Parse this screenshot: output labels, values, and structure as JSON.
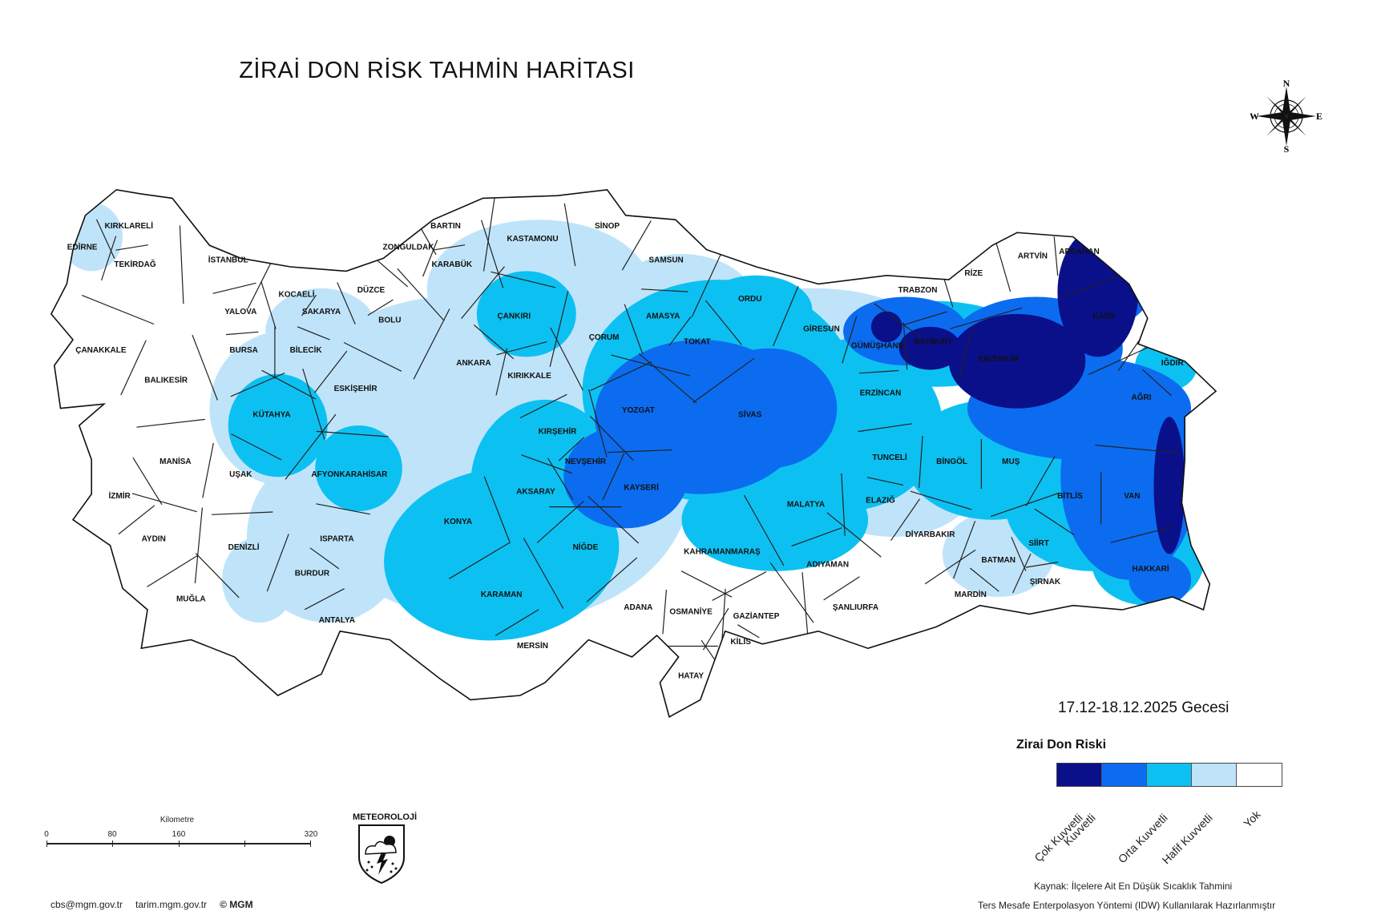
{
  "title": "ZİRAİ DON RİSK TAHMİN HARİTASI",
  "date_label": "17.12-18.12.2025 Gecesi",
  "compass": {
    "n": "N",
    "s": "S",
    "e": "E",
    "w": "W"
  },
  "legend": {
    "title": "Zirai Don Riski",
    "items": [
      {
        "label": "Çok Kuvvetli",
        "color": "#0a0f8a"
      },
      {
        "label": "Kuvvetli",
        "color": "#0b6cf0"
      },
      {
        "label": "Orta Kuvvetli",
        "color": "#0cc1f2"
      },
      {
        "label": "Hafif Kuvvetli",
        "color": "#bfe4fa"
      },
      {
        "label": "Yok",
        "color": "#ffffff"
      }
    ]
  },
  "source_lines": [
    "Kaynak: İlçelere Ait En Düşük Sıcaklık Tahmini",
    "Ters Mesafe Enterpolasyon Yöntemi (IDW) Kullanılarak Hazırlanmıştır"
  ],
  "footer": {
    "email": "cbs@mgm.gov.tr",
    "site": "tarim.mgm.gov.tr",
    "copyright": "© MGM"
  },
  "scale": {
    "title": "Kilometre",
    "ticks": [
      "0",
      "80",
      "160",
      "320"
    ]
  },
  "logo_text": "METEOROLOJİ",
  "map": {
    "provinces": [
      {
        "name": "KIRKLARELİ",
        "lon": 27.3,
        "lat": 41.6
      },
      {
        "name": "EDİRNE",
        "lon": 26.55,
        "lat": 41.35
      },
      {
        "name": "TEKİRDAĞ",
        "lon": 27.4,
        "lat": 41.15
      },
      {
        "name": "İSTANBUL",
        "lon": 28.9,
        "lat": 41.2
      },
      {
        "name": "KOCAELİ",
        "lon": 30.0,
        "lat": 40.8
      },
      {
        "name": "YALOVA",
        "lon": 29.1,
        "lat": 40.6
      },
      {
        "name": "SAKARYA",
        "lon": 30.4,
        "lat": 40.6
      },
      {
        "name": "DÜZCE",
        "lon": 31.2,
        "lat": 40.85
      },
      {
        "name": "ZONGULDAK",
        "lon": 31.8,
        "lat": 41.35
      },
      {
        "name": "BARTIN",
        "lon": 32.4,
        "lat": 41.6
      },
      {
        "name": "KARABÜK",
        "lon": 32.5,
        "lat": 41.15
      },
      {
        "name": "KASTAMONU",
        "lon": 33.8,
        "lat": 41.45
      },
      {
        "name": "SİNOP",
        "lon": 35.0,
        "lat": 41.6
      },
      {
        "name": "SAMSUN",
        "lon": 35.95,
        "lat": 41.2
      },
      {
        "name": "BOLU",
        "lon": 31.5,
        "lat": 40.5
      },
      {
        "name": "ÇANKIRI",
        "lon": 33.5,
        "lat": 40.55
      },
      {
        "name": "ÇORUM",
        "lon": 34.95,
        "lat": 40.3
      },
      {
        "name": "AMASYA",
        "lon": 35.9,
        "lat": 40.55
      },
      {
        "name": "ORDU",
        "lon": 37.3,
        "lat": 40.75
      },
      {
        "name": "GİRESUN",
        "lon": 38.45,
        "lat": 40.4
      },
      {
        "name": "TRABZON",
        "lon": 40.0,
        "lat": 40.85
      },
      {
        "name": "RİZE",
        "lon": 40.9,
        "lat": 41.05
      },
      {
        "name": "ARTVİN",
        "lon": 41.85,
        "lat": 41.25
      },
      {
        "name": "ARDAHAN",
        "lon": 42.6,
        "lat": 41.3
      },
      {
        "name": "KARS",
        "lon": 43.0,
        "lat": 40.55
      },
      {
        "name": "IĞDIR",
        "lon": 44.1,
        "lat": 40.0
      },
      {
        "name": "AĞRI",
        "lon": 43.6,
        "lat": 39.6
      },
      {
        "name": "ERZURUM",
        "lon": 41.3,
        "lat": 40.05
      },
      {
        "name": "BAYBURT",
        "lon": 40.25,
        "lat": 40.25
      },
      {
        "name": "GÜMÜŞHANE",
        "lon": 39.35,
        "lat": 40.2
      },
      {
        "name": "ERZİNCAN",
        "lon": 39.4,
        "lat": 39.65
      },
      {
        "name": "TOKAT",
        "lon": 36.45,
        "lat": 40.25
      },
      {
        "name": "SİVAS",
        "lon": 37.3,
        "lat": 39.4
      },
      {
        "name": "YOZGAT",
        "lon": 35.5,
        "lat": 39.45
      },
      {
        "name": "KIRIKKALE",
        "lon": 33.75,
        "lat": 39.85
      },
      {
        "name": "ANKARA",
        "lon": 32.85,
        "lat": 40.0
      },
      {
        "name": "ESKİŞEHİR",
        "lon": 30.95,
        "lat": 39.7
      },
      {
        "name": "BİLECİK",
        "lon": 30.15,
        "lat": 40.15
      },
      {
        "name": "BURSA",
        "lon": 29.15,
        "lat": 40.15
      },
      {
        "name": "ÇANAKKALE",
        "lon": 26.85,
        "lat": 40.15
      },
      {
        "name": "BALIKESİR",
        "lon": 27.9,
        "lat": 39.8
      },
      {
        "name": "KÜTAHYA",
        "lon": 29.6,
        "lat": 39.4
      },
      {
        "name": "KIRŞEHİR",
        "lon": 34.2,
        "lat": 39.2
      },
      {
        "name": "NEVŞEHİR",
        "lon": 34.65,
        "lat": 38.85
      },
      {
        "name": "KAYSERİ",
        "lon": 35.55,
        "lat": 38.55
      },
      {
        "name": "AKSARAY",
        "lon": 33.85,
        "lat": 38.5
      },
      {
        "name": "MANİSA",
        "lon": 28.05,
        "lat": 38.85
      },
      {
        "name": "UŞAK",
        "lon": 29.1,
        "lat": 38.7
      },
      {
        "name": "AFYONKARAHİSAR",
        "lon": 30.85,
        "lat": 38.7
      },
      {
        "name": "İZMİR",
        "lon": 27.15,
        "lat": 38.45
      },
      {
        "name": "AYDIN",
        "lon": 27.7,
        "lat": 37.95
      },
      {
        "name": "DENİZLİ",
        "lon": 29.15,
        "lat": 37.85
      },
      {
        "name": "ISPARTA",
        "lon": 30.65,
        "lat": 37.95
      },
      {
        "name": "KONYA",
        "lon": 32.6,
        "lat": 38.15
      },
      {
        "name": "NİĞDE",
        "lon": 34.65,
        "lat": 37.85
      },
      {
        "name": "BURDUR",
        "lon": 30.25,
        "lat": 37.55
      },
      {
        "name": "MUĞLA",
        "lon": 28.3,
        "lat": 37.25
      },
      {
        "name": "ANTALYA",
        "lon": 30.65,
        "lat": 37.0
      },
      {
        "name": "KARAMAN",
        "lon": 33.3,
        "lat": 37.3
      },
      {
        "name": "MERSİN",
        "lon": 33.8,
        "lat": 36.7
      },
      {
        "name": "ADANA",
        "lon": 35.5,
        "lat": 37.15
      },
      {
        "name": "OSMANİYE",
        "lon": 36.35,
        "lat": 37.1
      },
      {
        "name": "HATAY",
        "lon": 36.35,
        "lat": 36.35
      },
      {
        "name": "KAHRAMANMARAŞ",
        "lon": 36.85,
        "lat": 37.8
      },
      {
        "name": "GAZİANTEP",
        "lon": 37.4,
        "lat": 37.05
      },
      {
        "name": "KİLİS",
        "lon": 37.15,
        "lat": 36.75
      },
      {
        "name": "MALATYA",
        "lon": 38.2,
        "lat": 38.35
      },
      {
        "name": "ADIYAMAN",
        "lon": 38.55,
        "lat": 37.65
      },
      {
        "name": "ŞANLIURFA",
        "lon": 39.0,
        "lat": 37.15
      },
      {
        "name": "ELAZIĞ",
        "lon": 39.4,
        "lat": 38.4
      },
      {
        "name": "TUNCELİ",
        "lon": 39.55,
        "lat": 38.9
      },
      {
        "name": "BİNGÖL",
        "lon": 40.55,
        "lat": 38.85
      },
      {
        "name": "MUŞ",
        "lon": 41.5,
        "lat": 38.85
      },
      {
        "name": "DİYARBAKIR",
        "lon": 40.2,
        "lat": 38.0
      },
      {
        "name": "BATMAN",
        "lon": 41.3,
        "lat": 37.7
      },
      {
        "name": "SİİRT",
        "lon": 41.95,
        "lat": 37.9
      },
      {
        "name": "MARDİN",
        "lon": 40.85,
        "lat": 37.3
      },
      {
        "name": "ŞIRNAK",
        "lon": 42.05,
        "lat": 37.45
      },
      {
        "name": "BİTLİS",
        "lon": 42.45,
        "lat": 38.45
      },
      {
        "name": "VAN",
        "lon": 43.45,
        "lat": 38.45
      },
      {
        "name": "HAKKARİ",
        "lon": 43.75,
        "lat": 37.6
      }
    ]
  }
}
